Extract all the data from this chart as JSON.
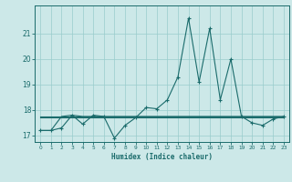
{
  "xlabel": "Humidex (Indice chaleur)",
  "background_color": "#cce8e8",
  "grid_color": "#99cccc",
  "line_color": "#1a6b6b",
  "x": [
    0,
    1,
    2,
    3,
    4,
    5,
    6,
    7,
    8,
    9,
    10,
    11,
    12,
    13,
    14,
    15,
    16,
    17,
    18,
    19,
    20,
    21,
    22,
    23
  ],
  "y_main": [
    17.2,
    17.2,
    17.3,
    17.8,
    17.45,
    17.8,
    17.75,
    16.9,
    17.4,
    17.7,
    18.1,
    18.05,
    18.4,
    19.3,
    21.6,
    19.1,
    21.2,
    18.4,
    20.0,
    17.75,
    17.5,
    17.4,
    17.65,
    17.75
  ],
  "y_ref1": [
    17.2,
    17.2,
    17.75,
    17.8,
    17.75,
    17.75,
    17.75,
    17.75,
    17.75,
    17.75,
    17.75,
    17.75,
    17.75,
    17.75,
    17.75,
    17.75,
    17.75,
    17.75,
    17.75,
    17.75,
    17.75,
    17.75,
    17.75,
    17.75
  ],
  "y_ref2": [
    17.75,
    17.75,
    17.75,
    17.75,
    17.75,
    17.75,
    17.75,
    17.75,
    17.75,
    17.75,
    17.75,
    17.75,
    17.75,
    17.75,
    17.75,
    17.75,
    17.75,
    17.75,
    17.75,
    17.75,
    17.75,
    17.75,
    17.75,
    17.75
  ],
  "y_ref3": [
    17.7,
    17.7,
    17.7,
    17.7,
    17.7,
    17.7,
    17.7,
    17.7,
    17.7,
    17.7,
    17.7,
    17.7,
    17.7,
    17.7,
    17.7,
    17.7,
    17.7,
    17.7,
    17.7,
    17.7,
    17.7,
    17.7,
    17.7,
    17.7
  ],
  "ylim": [
    16.75,
    22.1
  ],
  "yticks": [
    17,
    18,
    19,
    20,
    21
  ],
  "xlim": [
    -0.5,
    23.5
  ],
  "xticks": [
    0,
    1,
    2,
    3,
    4,
    5,
    6,
    7,
    8,
    9,
    10,
    11,
    12,
    13,
    14,
    15,
    16,
    17,
    18,
    19,
    20,
    21,
    22,
    23
  ],
  "figsize": [
    3.2,
    2.0
  ],
  "dpi": 100
}
